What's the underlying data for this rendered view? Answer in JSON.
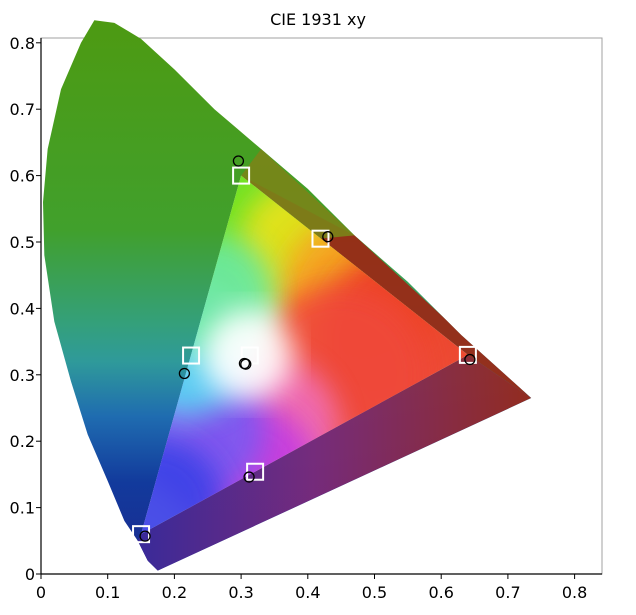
{
  "chart_data": {
    "type": "scatter",
    "title": "CIE 1931 xy",
    "xlabel": "",
    "ylabel": "",
    "xlim": [
      0,
      0.84
    ],
    "ylim": [
      0,
      0.84
    ],
    "x_ticks": [
      "0",
      "0.1",
      "0.2",
      "0.3",
      "0.4",
      "0.5",
      "0.6",
      "0.7",
      "0.8"
    ],
    "y_ticks": [
      "0",
      "0.1",
      "0.2",
      "0.3",
      "0.4",
      "0.5",
      "0.6",
      "0.7",
      "0.8"
    ],
    "grid": false,
    "legend": "none",
    "spectral_locus": [
      [
        0.175,
        0.005
      ],
      [
        0.16,
        0.02
      ],
      [
        0.145,
        0.05
      ],
      [
        0.125,
        0.08
      ],
      [
        0.1,
        0.14
      ],
      [
        0.07,
        0.21
      ],
      [
        0.045,
        0.29
      ],
      [
        0.02,
        0.38
      ],
      [
        0.005,
        0.48
      ],
      [
        0.003,
        0.56
      ],
      [
        0.01,
        0.64
      ],
      [
        0.03,
        0.73
      ],
      [
        0.06,
        0.8
      ],
      [
        0.08,
        0.834
      ],
      [
        0.11,
        0.83
      ],
      [
        0.15,
        0.806
      ],
      [
        0.2,
        0.76
      ],
      [
        0.26,
        0.7
      ],
      [
        0.33,
        0.64
      ],
      [
        0.4,
        0.58
      ],
      [
        0.47,
        0.51
      ],
      [
        0.55,
        0.44
      ],
      [
        0.63,
        0.36
      ],
      [
        0.735,
        0.265
      ]
    ],
    "series": [
      {
        "marker": "square",
        "values": [
          {
            "x": 0.3,
            "y": 0.6
          },
          {
            "x": 0.419,
            "y": 0.505
          },
          {
            "x": 0.64,
            "y": 0.33
          },
          {
            "x": 0.321,
            "y": 0.154
          },
          {
            "x": 0.15,
            "y": 0.06
          },
          {
            "x": 0.225,
            "y": 0.329
          },
          {
            "x": 0.313,
            "y": 0.329
          }
        ]
      },
      {
        "marker": "circle",
        "values": [
          {
            "x": 0.296,
            "y": 0.622
          },
          {
            "x": 0.43,
            "y": 0.508
          },
          {
            "x": 0.643,
            "y": 0.323
          },
          {
            "x": 0.312,
            "y": 0.146
          },
          {
            "x": 0.156,
            "y": 0.057
          },
          {
            "x": 0.215,
            "y": 0.302
          },
          {
            "x": 0.307,
            "y": 0.316
          },
          {
            "x": 0.305,
            "y": 0.317
          }
        ]
      }
    ]
  }
}
